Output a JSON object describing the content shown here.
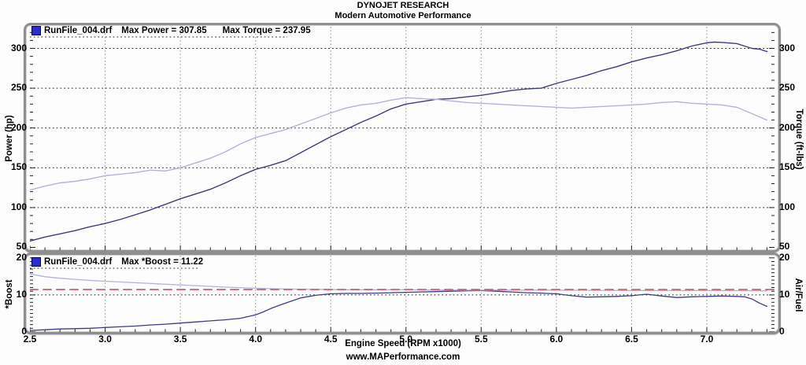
{
  "header": {
    "title": "DYNOJET RESEARCH",
    "subtitle": "Modern Automotive Performance"
  },
  "footer": {
    "website": "www.MAPerformance.com"
  },
  "x_axis": {
    "label": "Engine Speed (RPM x1000)",
    "tick_values": [
      2.5,
      3.0,
      3.5,
      4.0,
      4.5,
      5.0,
      5.5,
      6.0,
      6.5,
      7.0
    ],
    "tick_labels": [
      "2.5",
      "3.0",
      "3.5",
      "4.0",
      "4.5",
      "5.0",
      "5.5",
      "6.0",
      "6.5",
      "7.0"
    ]
  },
  "chart_data": [
    {
      "id": "power_torque",
      "type": "line",
      "left_axis_label": "Power (hp)",
      "right_axis_label": "Torque (ft-lbs)",
      "xlim": [
        2.5,
        7.45
      ],
      "ylim": [
        46.5,
        327.2
      ],
      "ytick_values": [
        50,
        100,
        150,
        200,
        250,
        300
      ],
      "ytick_labels": [
        "50",
        "100",
        "150",
        "200",
        "250",
        "300"
      ],
      "y_minor_step": 10,
      "y_major_step": 50,
      "x_gridlines": [
        3.0,
        3.5,
        4.0,
        4.5,
        5.0,
        5.5,
        6.0,
        6.5,
        7.0
      ],
      "y_gridlines": [
        100,
        150,
        200,
        250,
        300
      ],
      "legend": {
        "swatch_color": "#2b2bd1",
        "file": "RunFile_004.drf",
        "items": [
          "Max Power = 307.85",
          "Max Torque = 237.95"
        ]
      },
      "max_power": 307.85,
      "max_torque": 237.95,
      "series": [
        {
          "name": "power_hp",
          "color": "#3c3c82",
          "width": 1.4,
          "dash": null,
          "points": [
            [
              2.5,
              58
            ],
            [
              2.6,
              63
            ],
            [
              2.7,
              67
            ],
            [
              2.8,
              71
            ],
            [
              2.9,
              76
            ],
            [
              3.0,
              80
            ],
            [
              3.1,
              85
            ],
            [
              3.2,
              91
            ],
            [
              3.3,
              97
            ],
            [
              3.4,
              104
            ],
            [
              3.5,
              111
            ],
            [
              3.6,
              117
            ],
            [
              3.7,
              123
            ],
            [
              3.8,
              131
            ],
            [
              3.9,
              140
            ],
            [
              4.0,
              148
            ],
            [
              4.1,
              153
            ],
            [
              4.2,
              159
            ],
            [
              4.3,
              169
            ],
            [
              4.4,
              179
            ],
            [
              4.5,
              189
            ],
            [
              4.6,
              198
            ],
            [
              4.7,
              207
            ],
            [
              4.8,
              215
            ],
            [
              4.9,
              224
            ],
            [
              5.0,
              230
            ],
            [
              5.1,
              233
            ],
            [
              5.2,
              236
            ],
            [
              5.3,
              237
            ],
            [
              5.4,
              239
            ],
            [
              5.5,
              241
            ],
            [
              5.6,
              244
            ],
            [
              5.7,
              247
            ],
            [
              5.8,
              249
            ],
            [
              5.9,
              250
            ],
            [
              6.0,
              256
            ],
            [
              6.1,
              261
            ],
            [
              6.2,
              266
            ],
            [
              6.3,
              272
            ],
            [
              6.4,
              277
            ],
            [
              6.5,
              283
            ],
            [
              6.6,
              288
            ],
            [
              6.7,
              292
            ],
            [
              6.8,
              297
            ],
            [
              6.9,
              303
            ],
            [
              7.0,
              307
            ],
            [
              7.05,
              307.9
            ],
            [
              7.1,
              307.5
            ],
            [
              7.2,
              306
            ],
            [
              7.25,
              303
            ],
            [
              7.3,
              300
            ],
            [
              7.35,
              299
            ],
            [
              7.4,
              296
            ]
          ]
        },
        {
          "name": "torque_ftlbs",
          "color": "#b2b4d4",
          "width": 1.4,
          "dash": null,
          "points": [
            [
              2.5,
              122
            ],
            [
              2.6,
              127
            ],
            [
              2.7,
              131
            ],
            [
              2.8,
              133
            ],
            [
              2.9,
              136
            ],
            [
              3.0,
              140
            ],
            [
              3.1,
              142
            ],
            [
              3.2,
              144
            ],
            [
              3.3,
              147
            ],
            [
              3.4,
              146
            ],
            [
              3.5,
              150
            ],
            [
              3.6,
              156
            ],
            [
              3.7,
              162
            ],
            [
              3.8,
              170
            ],
            [
              3.9,
              180
            ],
            [
              4.0,
              188
            ],
            [
              4.1,
              193
            ],
            [
              4.2,
              198
            ],
            [
              4.3,
              205
            ],
            [
              4.4,
              212
            ],
            [
              4.5,
              219
            ],
            [
              4.6,
              225
            ],
            [
              4.7,
              229
            ],
            [
              4.8,
              231
            ],
            [
              4.9,
              235
            ],
            [
              5.0,
              238
            ],
            [
              5.1,
              237
            ],
            [
              5.2,
              236
            ],
            [
              5.3,
              234
            ],
            [
              5.4,
              232
            ],
            [
              5.5,
              231
            ],
            [
              5.6,
              230
            ],
            [
              5.7,
              229
            ],
            [
              5.8,
              228
            ],
            [
              5.9,
              227
            ],
            [
              6.0,
              226
            ],
            [
              6.1,
              225
            ],
            [
              6.2,
              226
            ],
            [
              6.3,
              227
            ],
            [
              6.4,
              228
            ],
            [
              6.5,
              229
            ],
            [
              6.6,
              230
            ],
            [
              6.7,
              232
            ],
            [
              6.8,
              233
            ],
            [
              6.9,
              231
            ],
            [
              7.0,
              230
            ],
            [
              7.1,
              229
            ],
            [
              7.2,
              226
            ],
            [
              7.3,
              218
            ],
            [
              7.4,
              210
            ]
          ]
        }
      ]
    },
    {
      "id": "boost_airfuel",
      "type": "line",
      "left_axis_label": "*Boost",
      "right_axis_label": "Air/Fuel",
      "xlim": [
        2.5,
        7.45
      ],
      "ylim": [
        0,
        20.6
      ],
      "ytick_values": [
        0,
        10,
        20
      ],
      "ytick_labels": [
        "0",
        "10",
        "20"
      ],
      "y_minor_step": 1,
      "y_major_step": 10,
      "x_gridlines": [
        3.0,
        3.5,
        4.0,
        4.5,
        5.0,
        5.5,
        6.0,
        6.5,
        7.0
      ],
      "y_gridlines": [
        10
      ],
      "legend": {
        "swatch_color": "#2b2bd1",
        "file": "RunFile_004.drf",
        "items": [
          "Max *Boost = 11.22"
        ]
      },
      "max_boost": 11.22,
      "series": [
        {
          "name": "boost_psi",
          "color": "#3c3c82",
          "width": 1.3,
          "dash": null,
          "points": [
            [
              2.5,
              0.4
            ],
            [
              2.6,
              0.6
            ],
            [
              2.7,
              0.8
            ],
            [
              2.8,
              0.9
            ],
            [
              2.9,
              1.0
            ],
            [
              3.0,
              1.2
            ],
            [
              3.1,
              1.4
            ],
            [
              3.2,
              1.6
            ],
            [
              3.3,
              1.9
            ],
            [
              3.4,
              2.1
            ],
            [
              3.5,
              2.4
            ],
            [
              3.6,
              2.7
            ],
            [
              3.7,
              3.0
            ],
            [
              3.8,
              3.3
            ],
            [
              3.9,
              3.7
            ],
            [
              4.0,
              4.6
            ],
            [
              4.05,
              5.4
            ],
            [
              4.1,
              6.3
            ],
            [
              4.15,
              7.1
            ],
            [
              4.2,
              7.8
            ],
            [
              4.3,
              9.2
            ],
            [
              4.4,
              9.9
            ],
            [
              4.5,
              10.3
            ],
            [
              4.6,
              10.4
            ],
            [
              4.7,
              10.4
            ],
            [
              4.8,
              10.5
            ],
            [
              4.9,
              10.6
            ],
            [
              5.0,
              10.7
            ],
            [
              5.1,
              10.8
            ],
            [
              5.2,
              10.9
            ],
            [
              5.3,
              11.0
            ],
            [
              5.4,
              11.1
            ],
            [
              5.5,
              11.2
            ],
            [
              5.6,
              11.0
            ],
            [
              5.7,
              10.8
            ],
            [
              5.8,
              10.6
            ],
            [
              5.9,
              10.5
            ],
            [
              6.0,
              10.3
            ],
            [
              6.1,
              9.8
            ],
            [
              6.2,
              9.4
            ],
            [
              6.3,
              9.5
            ],
            [
              6.4,
              9.6
            ],
            [
              6.5,
              9.8
            ],
            [
              6.6,
              10.2
            ],
            [
              6.7,
              9.7
            ],
            [
              6.8,
              9.3
            ],
            [
              6.9,
              9.5
            ],
            [
              7.0,
              9.6
            ],
            [
              7.1,
              9.7
            ],
            [
              7.2,
              9.6
            ],
            [
              7.25,
              9.5
            ],
            [
              7.3,
              8.9
            ],
            [
              7.35,
              7.8
            ],
            [
              7.4,
              6.9
            ]
          ]
        },
        {
          "name": "air_fuel",
          "color": "#b2b4d4",
          "width": 1.3,
          "dash": null,
          "points": [
            [
              2.5,
              15.7
            ],
            [
              2.6,
              14.9
            ],
            [
              2.7,
              14.5
            ],
            [
              2.8,
              14.2
            ],
            [
              2.9,
              13.9
            ],
            [
              3.0,
              13.7
            ],
            [
              3.2,
              13.3
            ],
            [
              3.4,
              12.9
            ],
            [
              3.6,
              12.5
            ],
            [
              3.8,
              12.1
            ],
            [
              4.0,
              11.8
            ],
            [
              4.2,
              11.6
            ],
            [
              4.4,
              11.5
            ],
            [
              4.6,
              11.4
            ],
            [
              4.8,
              11.4
            ],
            [
              5.0,
              11.4
            ],
            [
              5.2,
              11.3
            ],
            [
              5.5,
              11.3
            ],
            [
              6.0,
              11.3
            ],
            [
              6.5,
              11.2
            ],
            [
              7.0,
              11.2
            ],
            [
              7.4,
              11.1
            ]
          ]
        },
        {
          "name": "air_fuel_target_line",
          "color": "#c96c80",
          "width": 2,
          "dash": "10,7",
          "points": [
            [
              2.5,
              11.45
            ],
            [
              7.45,
              11.45
            ]
          ]
        }
      ]
    }
  ]
}
